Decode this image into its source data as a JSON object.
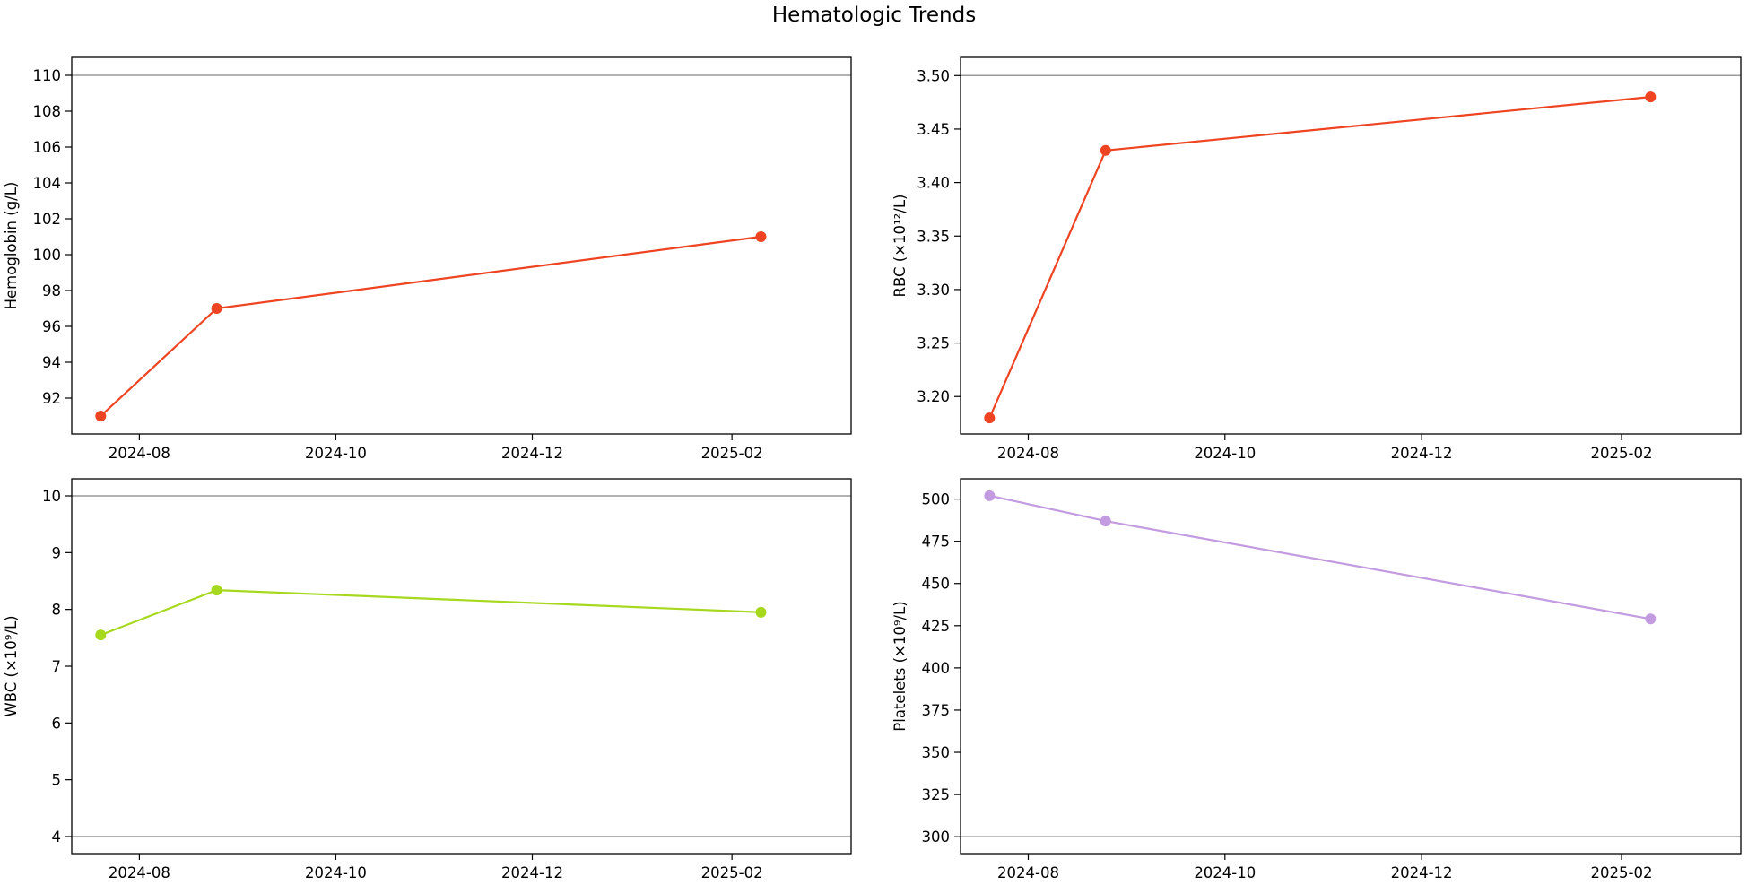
{
  "figure": {
    "title": "Hematologic Trends"
  },
  "chart_data": [
    {
      "type": "line",
      "ylabel": "Hemoglobin (g/L)",
      "xlabel": "",
      "x": [
        "2024-07-20",
        "2024-08-25",
        "2025-02-10"
      ],
      "series": [
        {
          "values": [
            91,
            97,
            101
          ],
          "color": "#ee4422"
        }
      ],
      "xlim": [
        "2024-07-11",
        "2025-03-10"
      ],
      "ylim": [
        90.0,
        111.0
      ],
      "yticks": [
        92,
        94,
        96,
        98,
        100,
        102,
        104,
        106,
        108,
        110
      ],
      "ytick_labels": [
        "92",
        "94",
        "96",
        "98",
        "100",
        "102",
        "104",
        "106",
        "108",
        "110"
      ],
      "xticks": [
        "2024-08-01",
        "2024-10-01",
        "2024-12-01",
        "2025-02-01"
      ],
      "xtick_labels": [
        "2024-08",
        "2024-10",
        "2024-12",
        "2025-02"
      ],
      "reference_lines": [
        110
      ],
      "grid": false
    },
    {
      "type": "line",
      "ylabel": "RBC (×10¹²/L)",
      "xlabel": "",
      "x": [
        "2024-07-20",
        "2024-08-25",
        "2025-02-10"
      ],
      "series": [
        {
          "values": [
            3.18,
            3.43,
            3.48
          ],
          "color": "#ee4422"
        }
      ],
      "xlim": [
        "2024-07-11",
        "2025-03-10"
      ],
      "ylim": [
        3.165,
        3.517
      ],
      "yticks": [
        3.2,
        3.25,
        3.3,
        3.35,
        3.4,
        3.45,
        3.5
      ],
      "ytick_labels": [
        "3.20",
        "3.25",
        "3.30",
        "3.35",
        "3.40",
        "3.45",
        "3.50"
      ],
      "xticks": [
        "2024-08-01",
        "2024-10-01",
        "2024-12-01",
        "2025-02-01"
      ],
      "xtick_labels": [
        "2024-08",
        "2024-10",
        "2024-12",
        "2025-02"
      ],
      "reference_lines": [
        3.5
      ],
      "grid": false
    },
    {
      "type": "line",
      "ylabel": "WBC (×10⁹/L)",
      "xlabel": "",
      "x": [
        "2024-07-20",
        "2024-08-25",
        "2025-02-10"
      ],
      "series": [
        {
          "values": [
            7.55,
            8.34,
            7.95
          ],
          "color": "#a6d81e"
        }
      ],
      "xlim": [
        "2024-07-11",
        "2025-03-10"
      ],
      "ylim": [
        3.7,
        10.3
      ],
      "yticks": [
        4,
        5,
        6,
        7,
        8,
        9,
        10
      ],
      "ytick_labels": [
        "4",
        "5",
        "6",
        "7",
        "8",
        "9",
        "10"
      ],
      "xticks": [
        "2024-08-01",
        "2024-10-01",
        "2024-12-01",
        "2025-02-01"
      ],
      "xtick_labels": [
        "2024-08",
        "2024-10",
        "2024-12",
        "2025-02"
      ],
      "reference_lines": [
        4,
        10
      ],
      "grid": false
    },
    {
      "type": "line",
      "ylabel": "Platelets (×10⁹/L)",
      "xlabel": "",
      "x": [
        "2024-07-20",
        "2024-08-25",
        "2025-02-10"
      ],
      "series": [
        {
          "values": [
            502,
            487,
            429
          ],
          "color": "#c39be0"
        }
      ],
      "xlim": [
        "2024-07-11",
        "2025-03-10"
      ],
      "ylim": [
        290,
        512
      ],
      "yticks": [
        300,
        325,
        350,
        375,
        400,
        425,
        450,
        475,
        500
      ],
      "ytick_labels": [
        "300",
        "325",
        "350",
        "375",
        "400",
        "425",
        "450",
        "475",
        "500"
      ],
      "xticks": [
        "2024-08-01",
        "2024-10-01",
        "2024-12-01",
        "2025-02-01"
      ],
      "xtick_labels": [
        "2024-08",
        "2024-10",
        "2024-12",
        "2025-02"
      ],
      "reference_lines": [
        300
      ],
      "grid": false
    }
  ]
}
